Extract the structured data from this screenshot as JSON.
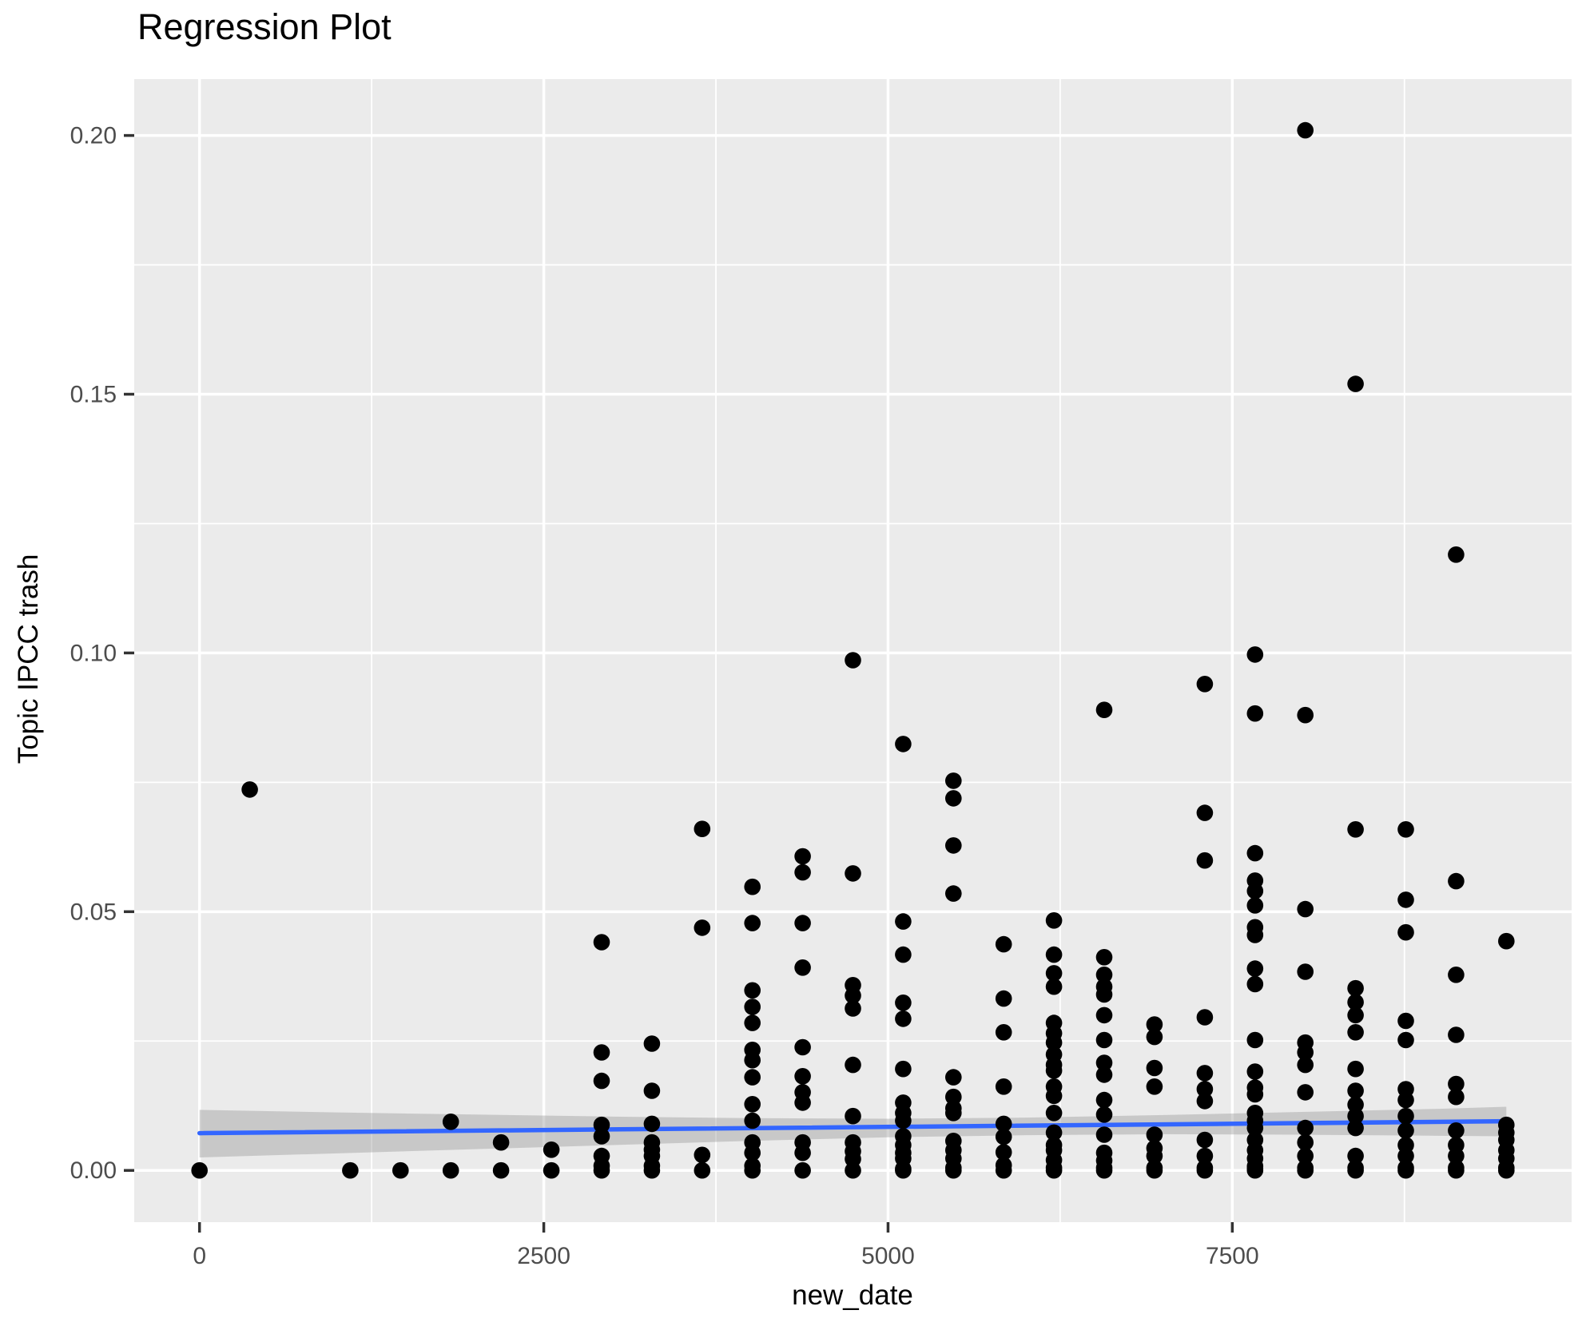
{
  "figure": {
    "title": "Regression Plot",
    "xlabel": "new_date",
    "ylabel": "Topic IPCC trash"
  },
  "style": {
    "panel_bg": "#EBEBEB",
    "grid_color": "#FFFFFF",
    "point_color": "#000000",
    "smooth_line_color": "#3366FF",
    "ci_band_color": "#999999",
    "ci_band_opacity": 0.42,
    "tick_label_color": "#4D4D4D",
    "tick_mark_color": "#333333"
  },
  "chart_data": {
    "type": "scatter",
    "title": "Regression Plot",
    "xlabel": "new_date",
    "ylabel": "Topic IPCC trash",
    "x_domain": [
      -474,
      9964
    ],
    "y_domain": [
      -0.01,
      0.2109
    ],
    "x_ticks": [
      {
        "v": 0,
        "label": "0"
      },
      {
        "v": 2500,
        "label": "2500"
      },
      {
        "v": 5000,
        "label": "5000"
      },
      {
        "v": 7500,
        "label": "7500"
      }
    ],
    "y_ticks": [
      {
        "v": 0.0,
        "label": "0.00"
      },
      {
        "v": 0.05,
        "label": "0.05"
      },
      {
        "v": 0.1,
        "label": "0.10"
      },
      {
        "v": 0.15,
        "label": "0.15"
      },
      {
        "v": 0.2,
        "label": "0.20"
      }
    ],
    "x_minor": [
      1250,
      3750,
      6250,
      8750
    ],
    "y_minor": [
      0.025,
      0.075,
      0.125,
      0.175
    ],
    "grid": true,
    "legend": "none",
    "clusters": [
      {
        "x": 0,
        "ys": [
          0.0
        ]
      },
      {
        "x": 365,
        "ys": [
          0.0736
        ]
      },
      {
        "x": 1095,
        "ys": [
          0.0
        ]
      },
      {
        "x": 1460,
        "ys": [
          0.0
        ]
      },
      {
        "x": 1825,
        "ys": [
          0.0094,
          0.0
        ]
      },
      {
        "x": 2190,
        "ys": [
          0.0054,
          0.0
        ]
      },
      {
        "x": 2555,
        "ys": [
          0.004,
          0.0
        ]
      },
      {
        "x": 2920,
        "ys": [
          0.0441,
          0.0228,
          0.0173,
          0.0088,
          0.0066,
          0.0028,
          0.0009,
          0.0
        ]
      },
      {
        "x": 3285,
        "ys": [
          0.0245,
          0.0154,
          0.009,
          0.0054,
          0.004,
          0.0028,
          0.0009,
          0.0
        ]
      },
      {
        "x": 3650,
        "ys": [
          0.066,
          0.0469,
          0.003,
          0.0
        ]
      },
      {
        "x": 4015,
        "ys": [
          0.0548,
          0.0478,
          0.0348,
          0.0316,
          0.0285,
          0.0233,
          0.0213,
          0.018,
          0.0128,
          0.0096,
          0.0054,
          0.0034,
          0.0009,
          0.0
        ]
      },
      {
        "x": 4380,
        "ys": [
          0.0607,
          0.0576,
          0.0478,
          0.0392,
          0.0238,
          0.0182,
          0.0151,
          0.0131,
          0.0054,
          0.0034,
          0.0
        ]
      },
      {
        "x": 4745,
        "ys": [
          0.0986,
          0.0574,
          0.0358,
          0.0338,
          0.0313,
          0.0204,
          0.0105,
          0.0054,
          0.0037,
          0.0022,
          0.0
        ]
      },
      {
        "x": 5110,
        "ys": [
          0.0824,
          0.0481,
          0.0417,
          0.0324,
          0.0293,
          0.0196,
          0.0131,
          0.0111,
          0.0096,
          0.0066,
          0.0049,
          0.0034,
          0.0023,
          0.0003,
          0.0
        ]
      },
      {
        "x": 5475,
        "ys": [
          0.0753,
          0.0719,
          0.0628,
          0.0535,
          0.018,
          0.0142,
          0.012,
          0.0111,
          0.0057,
          0.0039,
          0.0023,
          0.0005,
          0.0
        ]
      },
      {
        "x": 5840,
        "ys": [
          0.0437,
          0.0332,
          0.0267,
          0.0162,
          0.009,
          0.0065,
          0.0035,
          0.001,
          0.0
        ]
      },
      {
        "x": 6205,
        "ys": [
          0.0483,
          0.0417,
          0.0381,
          0.0355,
          0.0285,
          0.0265,
          0.0247,
          0.0224,
          0.0204,
          0.0193,
          0.0162,
          0.0144,
          0.0111,
          0.0073,
          0.0049,
          0.0039,
          0.002,
          0.0005,
          0.0
        ]
      },
      {
        "x": 6570,
        "ys": [
          0.089,
          0.0412,
          0.0378,
          0.0355,
          0.034,
          0.03,
          0.0252,
          0.0208,
          0.0185,
          0.0136,
          0.0108,
          0.0069,
          0.0034,
          0.0019,
          0.0005,
          0.0
        ]
      },
      {
        "x": 6935,
        "ys": [
          0.0282,
          0.0258,
          0.0198,
          0.0162,
          0.0069,
          0.0043,
          0.0028,
          0.0005,
          0.0
        ]
      },
      {
        "x": 7300,
        "ys": [
          0.094,
          0.0691,
          0.0599,
          0.0296,
          0.0188,
          0.0157,
          0.0134,
          0.0059,
          0.0028,
          0.0005,
          0.0
        ]
      },
      {
        "x": 7665,
        "ys": [
          0.0997,
          0.0883,
          0.0613,
          0.056,
          0.054,
          0.0512,
          0.047,
          0.0455,
          0.039,
          0.036,
          0.0252,
          0.0191,
          0.016,
          0.0147,
          0.0111,
          0.0096,
          0.0082,
          0.0059,
          0.0039,
          0.0023,
          0.0008,
          0.0003,
          0.0
        ]
      },
      {
        "x": 8030,
        "ys": [
          0.201,
          0.088,
          0.0505,
          0.0384,
          0.0247,
          0.0228,
          0.0204,
          0.0151,
          0.0082,
          0.0054,
          0.0028,
          0.0005,
          0.0
        ]
      },
      {
        "x": 8395,
        "ys": [
          0.152,
          0.0659,
          0.0352,
          0.0325,
          0.03,
          0.0267,
          0.0196,
          0.0154,
          0.0127,
          0.0105,
          0.0082,
          0.0028,
          0.0005,
          0.0
        ]
      },
      {
        "x": 8760,
        "ys": [
          0.0659,
          0.0523,
          0.046,
          0.0289,
          0.0252,
          0.0157,
          0.0136,
          0.0105,
          0.0077,
          0.0049,
          0.0028,
          0.0005,
          0.0
        ]
      },
      {
        "x": 9125,
        "ys": [
          0.119,
          0.0559,
          0.0378,
          0.0262,
          0.0167,
          0.0142,
          0.0077,
          0.0049,
          0.0028,
          0.0005,
          0.0
        ]
      },
      {
        "x": 9490,
        "ys": [
          0.0443,
          0.0088,
          0.0073,
          0.0059,
          0.0039,
          0.0023,
          0.0005,
          0.0
        ]
      }
    ],
    "regression_line": {
      "x0": 0,
      "y0": 0.0072,
      "x1": 9490,
      "y1": 0.0095
    },
    "ci_band": [
      {
        "x": 0,
        "lo": 0.0025,
        "hi": 0.0117
      },
      {
        "x": 1000,
        "lo": 0.0033,
        "hi": 0.0112
      },
      {
        "x": 2000,
        "lo": 0.0041,
        "hi": 0.0108
      },
      {
        "x": 3000,
        "lo": 0.0049,
        "hi": 0.0104
      },
      {
        "x": 4000,
        "lo": 0.0057,
        "hi": 0.0101
      },
      {
        "x": 5000,
        "lo": 0.0064,
        "hi": 0.01
      },
      {
        "x": 6000,
        "lo": 0.0068,
        "hi": 0.0102
      },
      {
        "x": 7000,
        "lo": 0.007,
        "hi": 0.0107
      },
      {
        "x": 8000,
        "lo": 0.0069,
        "hi": 0.0113
      },
      {
        "x": 9000,
        "lo": 0.0067,
        "hi": 0.0119
      },
      {
        "x": 9490,
        "lo": 0.0066,
        "hi": 0.0123
      }
    ]
  }
}
